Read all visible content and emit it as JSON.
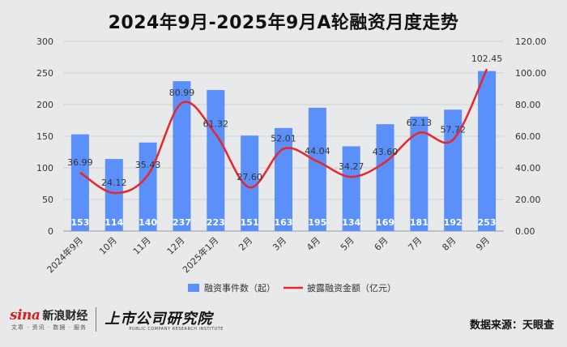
{
  "title": "2024年9月-2025年9月A轮融资月度走势",
  "footer": {
    "sina_brand": "sina",
    "sina_name": "新浪财经",
    "sina_sub": "文章 · 资讯 · 数据 · 服务",
    "institute_name": "上市公司研究院",
    "institute_en": "PUBLIC COMPANY RESEARCH INSTITUTE",
    "source": "数据来源：天眼查"
  },
  "colors": {
    "bar": "#5b8ff9",
    "line": "#e8262b",
    "background": "#e8e9eb",
    "grid": "#cfd1d4"
  },
  "chart_data": {
    "type": "bar",
    "categories": [
      "2024年9月",
      "10月",
      "11月",
      "12月",
      "2025年1月",
      "2月",
      "3月",
      "4月",
      "5月",
      "6月",
      "7月",
      "8月",
      "9月"
    ],
    "series": [
      {
        "name": "融资事件数（起）",
        "type": "bar",
        "axis": "left",
        "values": [
          153,
          114,
          140,
          237,
          223,
          151,
          163,
          195,
          134,
          169,
          181,
          192,
          253
        ]
      },
      {
        "name": "披露融资金额（亿元）",
        "type": "line",
        "smooth": true,
        "axis": "right",
        "values": [
          36.99,
          24.12,
          35.43,
          80.99,
          61.32,
          27.6,
          52.01,
          44.04,
          34.27,
          43.6,
          62.13,
          57.72,
          102.45
        ]
      }
    ],
    "y_left": {
      "min": 0,
      "max": 300,
      "ticks": [
        "0",
        "50",
        "100",
        "150",
        "200",
        "250",
        "300"
      ]
    },
    "y_right": {
      "min": 0,
      "max": 120,
      "ticks": [
        "0.00",
        "20.00",
        "40.00",
        "60.00",
        "80.00",
        "100.00",
        "120.00"
      ]
    },
    "grid": true,
    "legend_position": "bottom"
  }
}
